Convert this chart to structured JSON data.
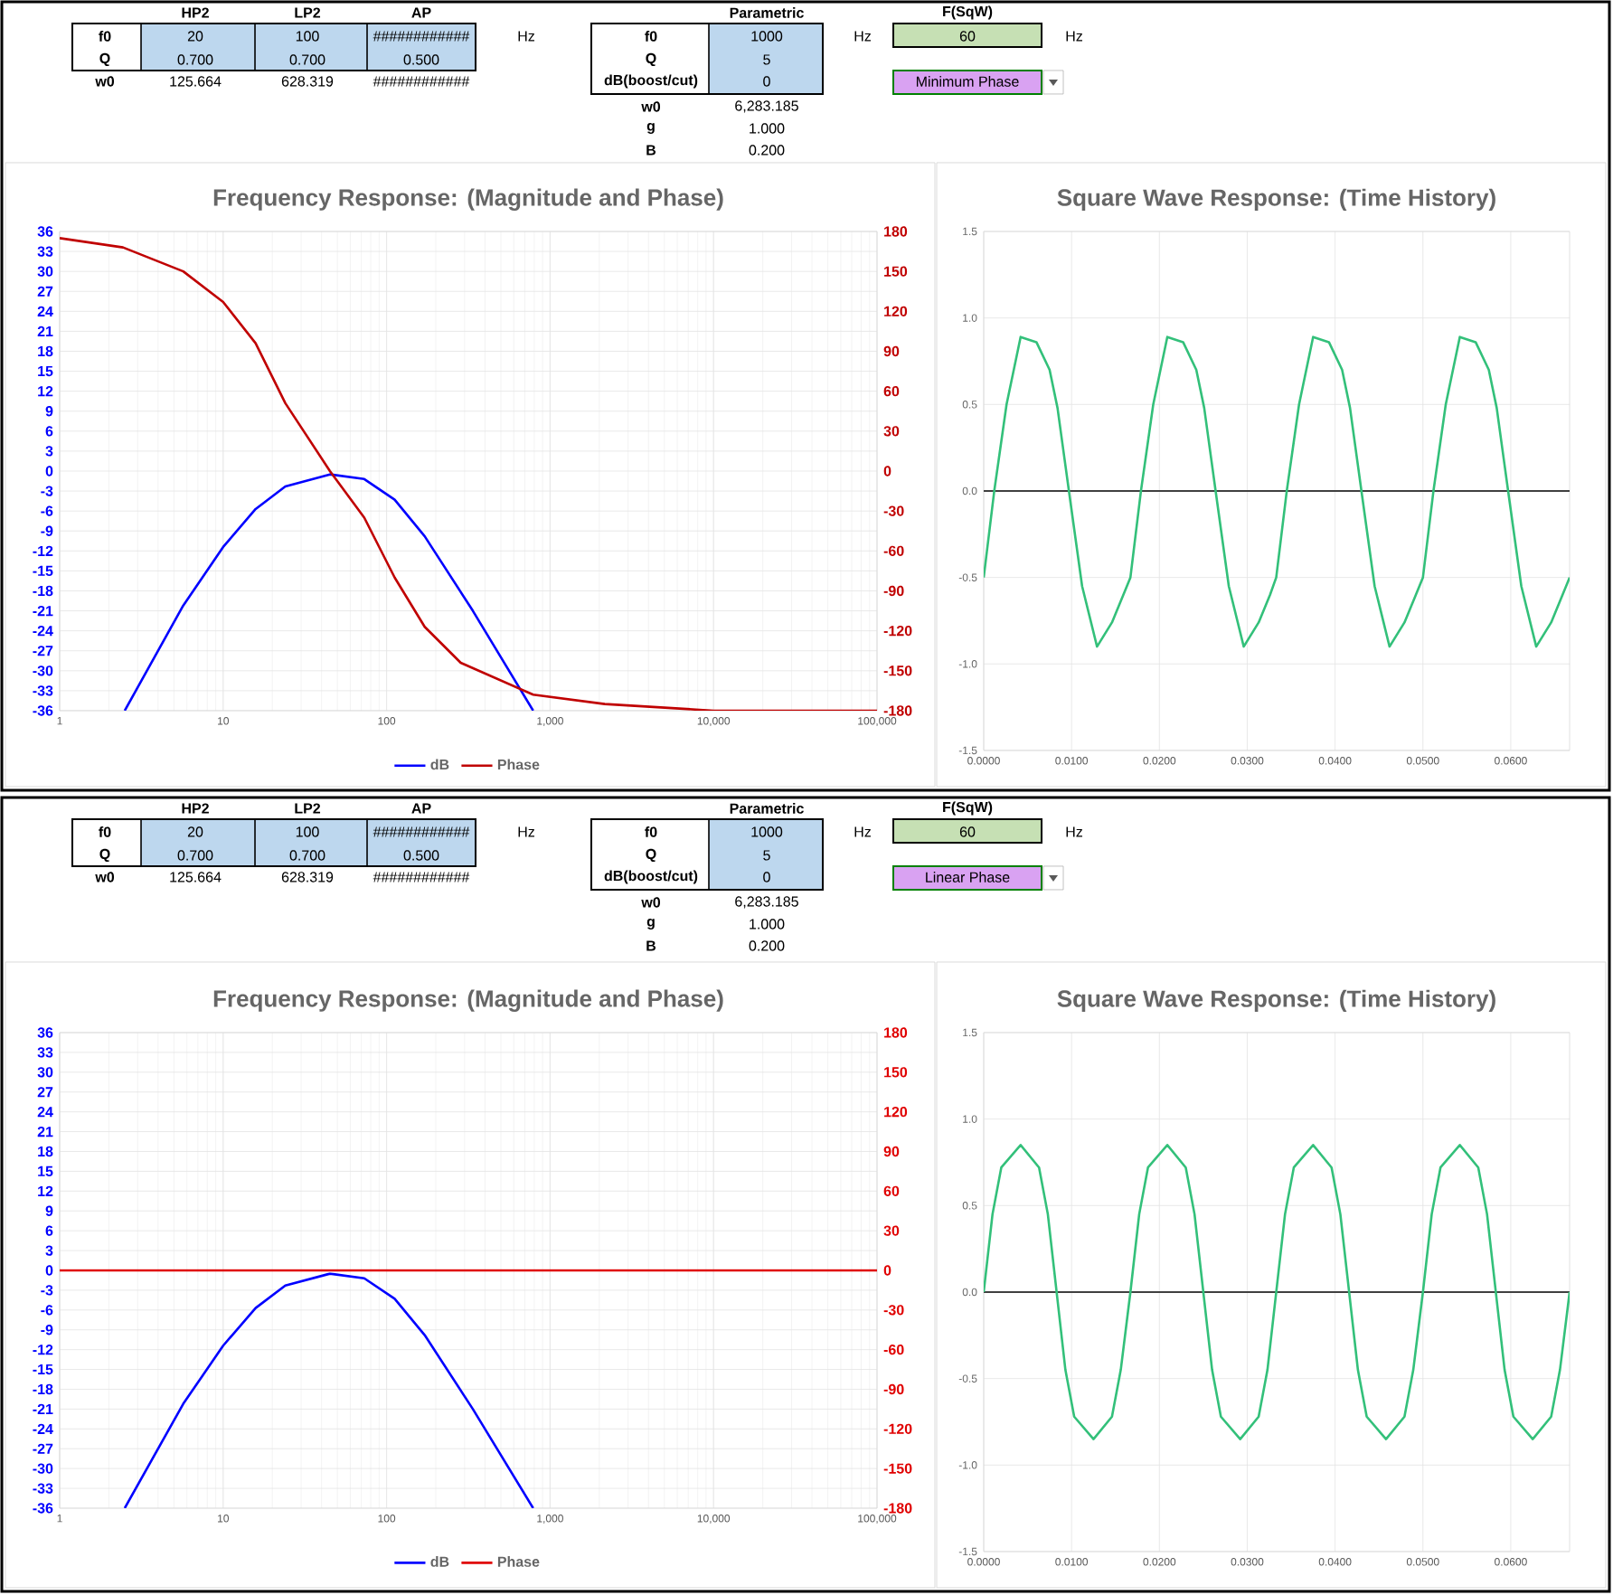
{
  "chart_data": [
    {
      "type": "other",
      "annotations": [
        "HP2",
        "LP2",
        "AP",
        "f0",
        "20",
        "100",
        "############",
        "Hz",
        "Q",
        "0.700",
        "0.700",
        "0.500",
        "w0",
        "125.664",
        "628.319",
        "############",
        "Parametric",
        "f0",
        "1000",
        "Hz",
        "Q",
        "5",
        "dB(boost/cut)",
        "0",
        "w0",
        "6,283.185",
        "g",
        "1.000",
        "B",
        "0.200",
        "F(SqW)",
        "60",
        "Hz",
        "Minimum Phase"
      ]
    },
    {
      "type": "line",
      "title": "Frequency Response: (Magnitude and Phase)",
      "log": "x",
      "grid": true,
      "legend": "bottom",
      "xlim": [
        1,
        100000
      ],
      "ylim": [
        -36,
        36
      ],
      "y2lim": [
        -180,
        180
      ],
      "xticks": [
        1,
        10,
        100,
        {
          "value": 1000,
          "label": "1,000"
        },
        {
          "value": 10000,
          "label": "10,000"
        },
        {
          "value": 100000,
          "label": "100,000"
        }
      ],
      "yticks": [
        -36,
        -33,
        -30,
        -27,
        -24,
        -21,
        -18,
        -15,
        -12,
        -9,
        -6,
        -3,
        0,
        3,
        6,
        9,
        12,
        15,
        18,
        21,
        24,
        27,
        30,
        33,
        36
      ],
      "y2ticks": [
        -180,
        -150,
        -120,
        -90,
        -60,
        -30,
        0,
        30,
        60,
        90,
        120,
        150,
        180
      ],
      "series": [
        {
          "name": "dB",
          "color": "#0000ff",
          "x": [
            2.5,
            5.7,
            10,
            15.8,
            24,
            45,
            73,
            112,
            171,
            337,
            788
          ],
          "values": [
            -36,
            -20.2,
            -11.4,
            -5.7,
            -2.3,
            -0.5,
            -1.2,
            -4.3,
            -9.8,
            -21,
            -36
          ]
        },
        {
          "name": "Phase",
          "color": "#c00000",
          "axis": "y2",
          "x": [
            1,
            2.44,
            5.7,
            10,
            15.8,
            24,
            45,
            73,
            112,
            171,
            284,
            788,
            2160,
            10000,
            100000
          ],
          "values": [
            175,
            168,
            150,
            127,
            96,
            51,
            0,
            -35,
            -80,
            -117,
            -144,
            -168,
            -175,
            -180,
            -180
          ]
        }
      ]
    },
    {
      "type": "line",
      "title": "Square Wave Response: (Time History)",
      "grid": true,
      "xlim": [
        0,
        0.0667
      ],
      "ylim": [
        -1.5,
        1.5
      ],
      "xticks": [
        {
          "value": 0,
          "label": "0.0000"
        },
        {
          "value": 0.01,
          "label": "0.0100"
        },
        {
          "value": 0.02,
          "label": "0.0200"
        },
        {
          "value": 0.03,
          "label": "0.0300"
        },
        {
          "value": 0.04,
          "label": "0.0400"
        },
        {
          "value": 0.05,
          "label": "0.0500"
        },
        {
          "value": 0.06,
          "label": "0.0600"
        }
      ],
      "yticks": [
        1.5,
        {
          "value": 1,
          "label": "1.0"
        },
        0.5,
        {
          "value": 0,
          "label": "0.0"
        },
        -0.5,
        {
          "value": -1,
          "label": "-1.0"
        },
        -1.5
      ],
      "ref_lines": [
        {
          "axis": "y",
          "value": 0,
          "color": "#404040"
        }
      ],
      "series": [
        {
          "color": "#33c07a",
          "x": [
            0,
            0.0012,
            0.0026,
            0.0042,
            0.006,
            0.0075,
            0.0084,
            0.0097,
            0.0112,
            0.0129,
            0.0146,
            0.0159,
            0.0167,
            0.0179,
            0.0193,
            0.0209,
            0.0227,
            0.0242,
            0.0251,
            0.0264,
            0.0279,
            0.0296,
            0.0313,
            0.0326,
            0.0333,
            0.0345,
            0.0359,
            0.0375,
            0.0393,
            0.0408,
            0.0417,
            0.043,
            0.0445,
            0.0462,
            0.0479,
            0.0492,
            0.05,
            0.0512,
            0.0526,
            0.0542,
            0.056,
            0.0575,
            0.0584,
            0.0597,
            0.0612,
            0.0629,
            0.0646,
            0.0659,
            0.0667
          ],
          "values": [
            -0.5,
            0,
            0.5,
            0.89,
            0.86,
            0.7,
            0.48,
            0,
            -0.55,
            -0.9,
            -0.76,
            -0.6,
            -0.5,
            0,
            0.5,
            0.89,
            0.86,
            0.7,
            0.48,
            0,
            -0.55,
            -0.9,
            -0.76,
            -0.6,
            -0.5,
            0,
            0.5,
            0.89,
            0.86,
            0.7,
            0.48,
            0,
            -0.55,
            -0.9,
            -0.76,
            -0.6,
            -0.5,
            0,
            0.5,
            0.89,
            0.86,
            0.7,
            0.48,
            0,
            -0.55,
            -0.9,
            -0.76,
            -0.6,
            -0.5
          ]
        }
      ]
    },
    {
      "type": "other",
      "annotations": [
        "HP2",
        "LP2",
        "AP",
        "f0",
        "20",
        "100",
        "############",
        "Hz",
        "Q",
        "0.700",
        "0.700",
        "0.500",
        "w0",
        "125.664",
        "628.319",
        "############",
        "Parametric",
        "f0",
        "1000",
        "Hz",
        "Q",
        "5",
        "dB(boost/cut)",
        "0",
        "w0",
        "6,283.185",
        "g",
        "1.000",
        "B",
        "0.200",
        "F(SqW)",
        "60",
        "Hz",
        "Linear Phase"
      ]
    },
    {
      "type": "line",
      "title": "Frequency Response: (Magnitude and Phase)",
      "log": "x",
      "grid": true,
      "legend": "bottom",
      "xlim": [
        1,
        100000
      ],
      "ylim": [
        -36,
        36
      ],
      "y2lim": [
        -180,
        180
      ],
      "xticks": [
        1,
        10,
        100,
        {
          "value": 1000,
          "label": "1,000"
        },
        {
          "value": 10000,
          "label": "10,000"
        },
        {
          "value": 100000,
          "label": "100,000"
        }
      ],
      "yticks": [
        -36,
        -33,
        -30,
        -27,
        -24,
        -21,
        -18,
        -15,
        -12,
        -9,
        -6,
        -3,
        0,
        3,
        6,
        9,
        12,
        15,
        18,
        21,
        24,
        27,
        30,
        33,
        36
      ],
      "y2ticks": [
        -180,
        -150,
        -120,
        -90,
        -60,
        -30,
        0,
        30,
        60,
        90,
        120,
        150,
        180
      ],
      "series": [
        {
          "name": "dB",
          "color": "#0000ff",
          "x": [
            2.5,
            5.7,
            10,
            15.8,
            24,
            45,
            73,
            112,
            171,
            337,
            788
          ],
          "values": [
            -36,
            -20.2,
            -11.4,
            -5.7,
            -2.3,
            -0.5,
            -1.2,
            -4.3,
            -9.8,
            -21,
            -36
          ]
        },
        {
          "name": "Phase",
          "color": "#e00000",
          "axis": "y2",
          "x": [
            1,
            100000
          ],
          "values": [
            0,
            0
          ]
        }
      ]
    },
    {
      "type": "line",
      "title": "Square Wave Response: (Time History)",
      "grid": true,
      "xlim": [
        0,
        0.0667
      ],
      "ylim": [
        -1.5,
        1.5
      ],
      "xticks": [
        {
          "value": 0,
          "label": "0.0000"
        },
        {
          "value": 0.01,
          "label": "0.0100"
        },
        {
          "value": 0.02,
          "label": "0.0200"
        },
        {
          "value": 0.03,
          "label": "0.0300"
        },
        {
          "value": 0.04,
          "label": "0.0400"
        },
        {
          "value": 0.05,
          "label": "0.0500"
        },
        {
          "value": 0.06,
          "label": "0.0600"
        }
      ],
      "yticks": [
        1.5,
        {
          "value": 1,
          "label": "1.0"
        },
        0.5,
        {
          "value": 0,
          "label": "0.0"
        },
        -0.5,
        {
          "value": -1,
          "label": "-1.0"
        },
        -1.5
      ],
      "ref_lines": [
        {
          "axis": "y",
          "value": 0,
          "color": "#404040"
        }
      ],
      "series": [
        {
          "color": "#33c07a",
          "x": [
            0,
            0.001,
            0.002,
            0.0042,
            0.0063,
            0.0073,
            0.0083,
            0.0093,
            0.0103,
            0.0125,
            0.0146,
            0.0156,
            0.0167,
            0.0177,
            0.0187,
            0.0209,
            0.023,
            0.024,
            0.025,
            0.026,
            0.027,
            0.0292,
            0.0313,
            0.0323,
            0.0333,
            0.0343,
            0.0353,
            0.0375,
            0.0396,
            0.0406,
            0.0416,
            0.0426,
            0.0436,
            0.0458,
            0.0479,
            0.0489,
            0.05,
            0.051,
            0.052,
            0.0542,
            0.0563,
            0.0573,
            0.0583,
            0.0593,
            0.0603,
            0.0625,
            0.0646,
            0.0656,
            0.0667
          ],
          "values": [
            0,
            0.45,
            0.72,
            0.85,
            0.72,
            0.45,
            0,
            -0.45,
            -0.72,
            -0.85,
            -0.72,
            -0.45,
            0,
            0.45,
            0.72,
            0.85,
            0.72,
            0.45,
            0,
            -0.45,
            -0.72,
            -0.85,
            -0.72,
            -0.45,
            0,
            0.45,
            0.72,
            0.85,
            0.72,
            0.45,
            0,
            -0.45,
            -0.72,
            -0.85,
            -0.72,
            -0.45,
            0,
            0.45,
            0.72,
            0.85,
            0.72,
            0.45,
            0,
            -0.45,
            -0.72,
            -0.85,
            -0.72,
            -0.45,
            0
          ]
        }
      ]
    }
  ]
}
